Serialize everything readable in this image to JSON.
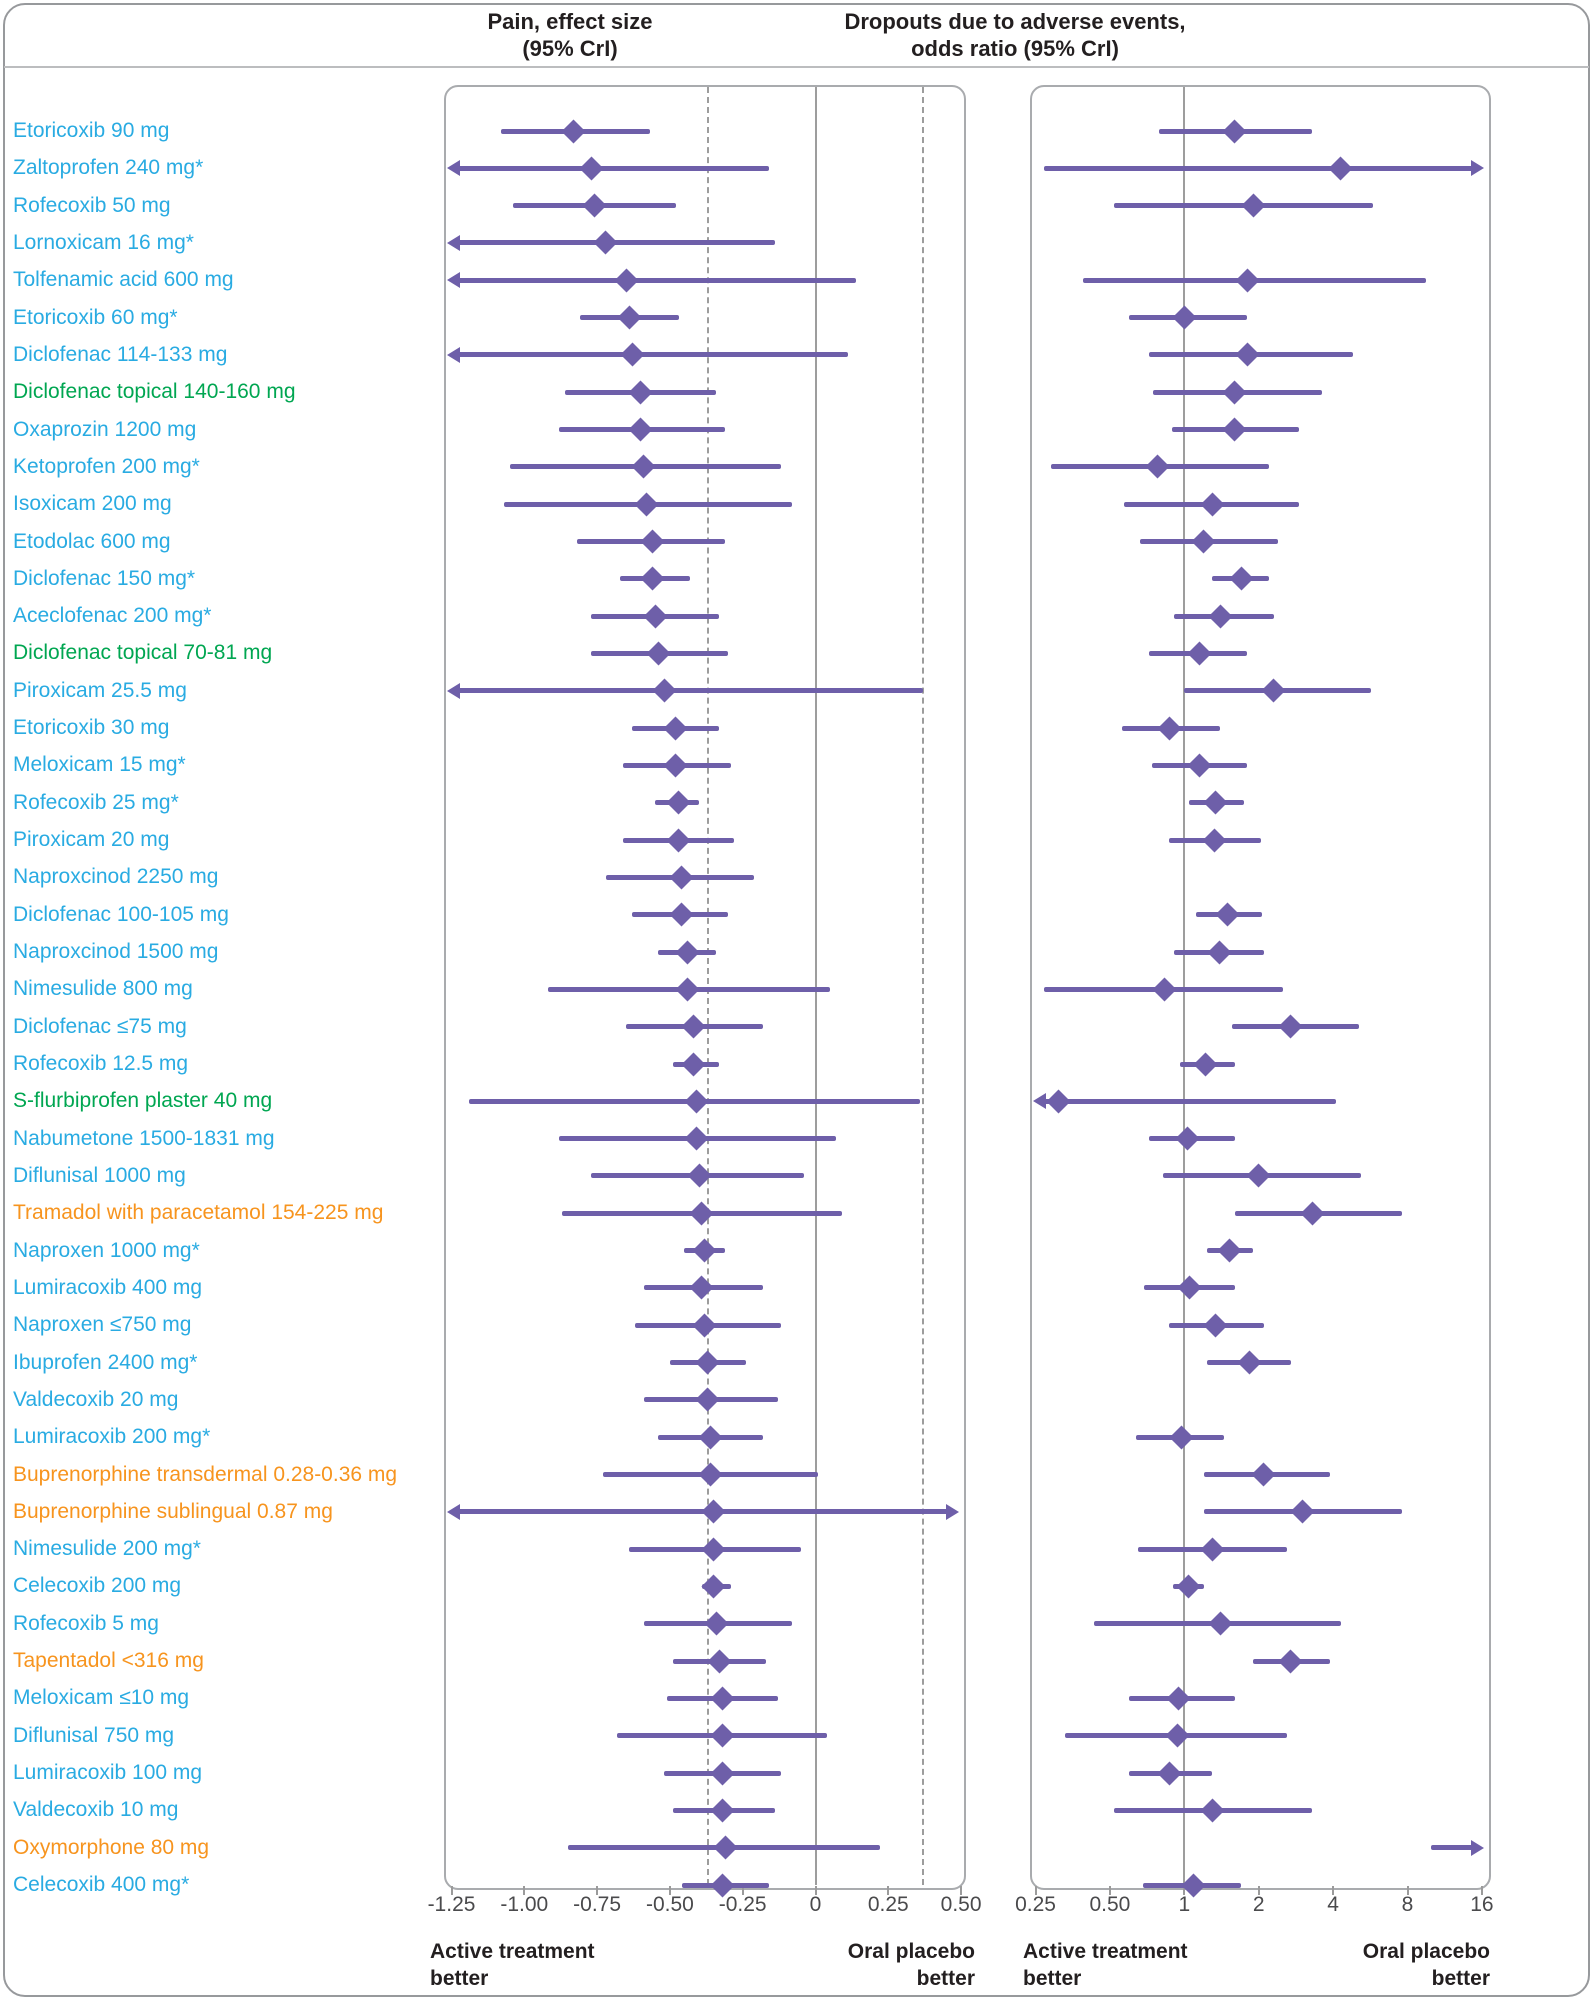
{
  "titles": {
    "pain": "Pain, effect size\n(95% CrI)",
    "dropouts": "Dropouts due to adverse events,\nodds ratio (95% CrI)"
  },
  "footers": {
    "active": "Active treatment\nbetter",
    "placebo": "Oral placebo\nbetter"
  },
  "colors": {
    "blue": "#29abe2",
    "green": "#00a651",
    "orange": "#f7941e",
    "marker_purple": "#6e5fa9",
    "grid_gray": "#9d9d9d",
    "text_dark": "#231f20"
  },
  "chart_data": {
    "type": "forest",
    "panels": [
      {
        "id": "pain",
        "title": "Pain, effect size (95% CrI)",
        "scale": "linear",
        "ticks": [
          -1.25,
          -1.0,
          -0.75,
          -0.5,
          -0.25,
          0,
          0.25,
          0.5
        ],
        "tick_labels": [
          "-1.25",
          "-1.00",
          "-0.75",
          "-0.50",
          "-0.25",
          "0",
          "0.25",
          "0.50"
        ],
        "ref_solid": 0,
        "ref_dashed": [
          -0.37,
          0.37
        ],
        "xlim": [
          -1.27,
          0.51
        ],
        "footer_left": "Active treatment better",
        "footer_right": "Oral placebo better"
      },
      {
        "id": "dropouts",
        "title": "Dropouts due to adverse events, odds ratio (95% CrI)",
        "scale": "log2",
        "ticks": [
          0.25,
          0.5,
          1,
          2,
          4,
          8,
          16
        ],
        "tick_labels": [
          "0.25",
          "0.50",
          "1",
          "2",
          "4",
          "8",
          "16"
        ],
        "ref_solid": 1,
        "ref_dashed": [],
        "xlim": [
          0.24,
          16.8
        ],
        "footer_left": "Active treatment better",
        "footer_right": "Oral placebo better"
      }
    ],
    "rows": [
      {
        "label": "Etoricoxib 90 mg",
        "group": "blue",
        "pain": {
          "est": -0.83,
          "lo": -1.08,
          "hi": -0.57
        },
        "dropouts": {
          "est": 1.6,
          "lo": 0.79,
          "hi": 3.3
        }
      },
      {
        "label": "Zaltoprofen 240 mg*",
        "group": "blue",
        "pain": {
          "est": -0.77,
          "lo": null,
          "hi": -0.16,
          "arrow_lo": true
        },
        "dropouts": {
          "est": 4.3,
          "lo": 0.27,
          "hi": null,
          "arrow_hi": true
        }
      },
      {
        "label": "Rofecoxib 50 mg",
        "group": "blue",
        "pain": {
          "est": -0.76,
          "lo": -1.04,
          "hi": -0.48
        },
        "dropouts": {
          "est": 1.9,
          "lo": 0.52,
          "hi": 5.8
        }
      },
      {
        "label": "Lornoxicam 16 mg*",
        "group": "blue",
        "pain": {
          "est": -0.72,
          "lo": null,
          "hi": -0.14,
          "arrow_lo": true
        },
        "dropouts": null
      },
      {
        "label": "Tolfenamic acid 600 mg",
        "group": "blue",
        "pain": {
          "est": -0.65,
          "lo": null,
          "hi": 0.14,
          "arrow_lo": true
        },
        "dropouts": {
          "est": 1.8,
          "lo": 0.39,
          "hi": 9.5
        }
      },
      {
        "label": "Etoricoxib 60 mg*",
        "group": "blue",
        "pain": {
          "est": -0.64,
          "lo": -0.81,
          "hi": -0.47
        },
        "dropouts": {
          "est": 1.0,
          "lo": 0.6,
          "hi": 1.8
        }
      },
      {
        "label": "Diclofenac 114-133 mg",
        "group": "blue",
        "pain": {
          "est": -0.63,
          "lo": null,
          "hi": 0.11,
          "arrow_lo": true
        },
        "dropouts": {
          "est": 1.8,
          "lo": 0.72,
          "hi": 4.8
        }
      },
      {
        "label": "Diclofenac topical 140-160 mg",
        "group": "green",
        "pain": {
          "est": -0.6,
          "lo": -0.86,
          "hi": -0.34
        },
        "dropouts": {
          "est": 1.6,
          "lo": 0.75,
          "hi": 3.6
        }
      },
      {
        "label": "Oxaprozin 1200 mg",
        "group": "blue",
        "pain": {
          "est": -0.6,
          "lo": -0.88,
          "hi": -0.31
        },
        "dropouts": {
          "est": 1.6,
          "lo": 0.89,
          "hi": 2.9
        }
      },
      {
        "label": "Ketoprofen 200 mg*",
        "group": "blue",
        "pain": {
          "est": -0.59,
          "lo": -1.05,
          "hi": -0.12
        },
        "dropouts": {
          "est": 0.78,
          "lo": 0.29,
          "hi": 2.2
        }
      },
      {
        "label": "Isoxicam 200 mg",
        "group": "blue",
        "pain": {
          "est": -0.58,
          "lo": -1.07,
          "hi": -0.08
        },
        "dropouts": {
          "est": 1.3,
          "lo": 0.57,
          "hi": 2.9
        }
      },
      {
        "label": "Etodolac 600 mg",
        "group": "blue",
        "pain": {
          "est": -0.56,
          "lo": -0.82,
          "hi": -0.31
        },
        "dropouts": {
          "est": 1.2,
          "lo": 0.66,
          "hi": 2.4
        }
      },
      {
        "label": "Diclofenac 150 mg*",
        "group": "blue",
        "pain": {
          "est": -0.56,
          "lo": -0.67,
          "hi": -0.43
        },
        "dropouts": {
          "est": 1.7,
          "lo": 1.3,
          "hi": 2.2
        }
      },
      {
        "label": "Aceclofenac 200 mg*",
        "group": "blue",
        "pain": {
          "est": -0.55,
          "lo": -0.77,
          "hi": -0.33
        },
        "dropouts": {
          "est": 1.4,
          "lo": 0.91,
          "hi": 2.3
        }
      },
      {
        "label": "Diclofenac topical 70-81 mg",
        "group": "green",
        "pain": {
          "est": -0.54,
          "lo": -0.77,
          "hi": -0.3
        },
        "dropouts": {
          "est": 1.15,
          "lo": 0.72,
          "hi": 1.8
        }
      },
      {
        "label": "Piroxicam 25.5 mg",
        "group": "blue",
        "pain": {
          "est": -0.52,
          "lo": null,
          "hi": 0.37,
          "arrow_lo": true
        },
        "dropouts": {
          "est": 2.3,
          "lo": 1.0,
          "hi": 5.7
        }
      },
      {
        "label": "Etoricoxib 30 mg",
        "group": "blue",
        "pain": {
          "est": -0.48,
          "lo": -0.63,
          "hi": -0.33
        },
        "dropouts": {
          "est": 0.87,
          "lo": 0.56,
          "hi": 1.4
        }
      },
      {
        "label": "Meloxicam 15 mg*",
        "group": "blue",
        "pain": {
          "est": -0.48,
          "lo": -0.66,
          "hi": -0.29
        },
        "dropouts": {
          "est": 1.15,
          "lo": 0.74,
          "hi": 1.8
        }
      },
      {
        "label": "Rofecoxib 25 mg*",
        "group": "blue",
        "pain": {
          "est": -0.47,
          "lo": -0.55,
          "hi": -0.4
        },
        "dropouts": {
          "est": 1.34,
          "lo": 1.04,
          "hi": 1.74
        }
      },
      {
        "label": "Piroxicam 20 mg",
        "group": "blue",
        "pain": {
          "est": -0.47,
          "lo": -0.66,
          "hi": -0.28
        },
        "dropouts": {
          "est": 1.33,
          "lo": 0.87,
          "hi": 2.05
        }
      },
      {
        "label": "Naproxcinod 2250 mg",
        "group": "blue",
        "pain": {
          "est": -0.46,
          "lo": -0.72,
          "hi": -0.21
        },
        "dropouts": null
      },
      {
        "label": "Diclofenac 100-105 mg",
        "group": "blue",
        "pain": {
          "est": -0.46,
          "lo": -0.63,
          "hi": -0.3
        },
        "dropouts": {
          "est": 1.5,
          "lo": 1.11,
          "hi": 2.06
        }
      },
      {
        "label": "Naproxcinod 1500 mg",
        "group": "blue",
        "pain": {
          "est": -0.44,
          "lo": -0.54,
          "hi": -0.34
        },
        "dropouts": {
          "est": 1.39,
          "lo": 0.91,
          "hi": 2.1
        }
      },
      {
        "label": "Nimesulide 800 mg",
        "group": "blue",
        "pain": {
          "est": -0.44,
          "lo": -0.92,
          "hi": 0.05
        },
        "dropouts": {
          "est": 0.83,
          "lo": 0.27,
          "hi": 2.5
        }
      },
      {
        "label": "Diclofenac ≤75 mg",
        "group": "blue",
        "pain": {
          "est": -0.42,
          "lo": -0.65,
          "hi": -0.18
        },
        "dropouts": {
          "est": 2.7,
          "lo": 1.56,
          "hi": 5.1
        }
      },
      {
        "label": "Rofecoxib 12.5 mg",
        "group": "blue",
        "pain": {
          "est": -0.42,
          "lo": -0.49,
          "hi": -0.33
        },
        "dropouts": {
          "est": 1.22,
          "lo": 0.96,
          "hi": 1.6
        }
      },
      {
        "label": "S-flurbiprofen plaster 40 mg",
        "group": "green",
        "pain": {
          "est": -0.41,
          "lo": -1.19,
          "hi": 0.36
        },
        "dropouts": {
          "est": 0.31,
          "lo": null,
          "hi": 4.1,
          "arrow_lo": true
        }
      },
      {
        "label": "Nabumetone 1500-1831 mg",
        "group": "blue",
        "pain": {
          "est": -0.41,
          "lo": -0.88,
          "hi": 0.07
        },
        "dropouts": {
          "est": 1.03,
          "lo": 0.72,
          "hi": 1.6
        }
      },
      {
        "label": "Diflunisal 1000 mg",
        "group": "blue",
        "pain": {
          "est": -0.4,
          "lo": -0.77,
          "hi": -0.04
        },
        "dropouts": {
          "est": 2.0,
          "lo": 0.82,
          "hi": 5.2
        }
      },
      {
        "label": "Tramadol with paracetamol 154-225 mg",
        "group": "orange",
        "pain": {
          "est": -0.39,
          "lo": -0.87,
          "hi": 0.09
        },
        "dropouts": {
          "est": 3.3,
          "lo": 1.6,
          "hi": 7.6
        }
      },
      {
        "label": "Naproxen 1000 mg*",
        "group": "blue",
        "pain": {
          "est": -0.38,
          "lo": -0.45,
          "hi": -0.31
        },
        "dropouts": {
          "est": 1.53,
          "lo": 1.24,
          "hi": 1.89
        }
      },
      {
        "label": "Lumiracoxib 400 mg",
        "group": "blue",
        "pain": {
          "est": -0.39,
          "lo": -0.59,
          "hi": -0.18
        },
        "dropouts": {
          "est": 1.05,
          "lo": 0.69,
          "hi": 1.6
        }
      },
      {
        "label": "Naproxen ≤750 mg",
        "group": "blue",
        "pain": {
          "est": -0.38,
          "lo": -0.62,
          "hi": -0.12
        },
        "dropouts": {
          "est": 1.34,
          "lo": 0.87,
          "hi": 2.1
        }
      },
      {
        "label": "Ibuprofen 2400 mg*",
        "group": "blue",
        "pain": {
          "est": -0.37,
          "lo": -0.5,
          "hi": -0.24
        },
        "dropouts": {
          "est": 1.84,
          "lo": 1.24,
          "hi": 2.7
        }
      },
      {
        "label": "Valdecoxib 20 mg",
        "group": "blue",
        "pain": {
          "est": -0.37,
          "lo": -0.59,
          "hi": -0.13
        },
        "dropouts": null
      },
      {
        "label": "Lumiracoxib 200 mg*",
        "group": "blue",
        "pain": {
          "est": -0.36,
          "lo": -0.54,
          "hi": -0.18
        },
        "dropouts": {
          "est": 0.97,
          "lo": 0.64,
          "hi": 1.45
        }
      },
      {
        "label": "Buprenorphine transdermal 0.28-0.36 mg",
        "group": "orange",
        "pain": {
          "est": -0.36,
          "lo": -0.73,
          "hi": 0.01
        },
        "dropouts": {
          "est": 2.1,
          "lo": 1.2,
          "hi": 3.9
        }
      },
      {
        "label": "Buprenorphine sublingual 0.87 mg",
        "group": "orange",
        "pain": {
          "est": -0.35,
          "lo": null,
          "hi": null,
          "arrow_lo": true,
          "arrow_hi": true
        },
        "dropouts": {
          "est": 3.0,
          "lo": 1.2,
          "hi": 7.6
        }
      },
      {
        "label": "Nimesulide 200 mg*",
        "group": "blue",
        "pain": {
          "est": -0.35,
          "lo": -0.64,
          "hi": -0.05
        },
        "dropouts": {
          "est": 1.3,
          "lo": 0.65,
          "hi": 2.6
        }
      },
      {
        "label": "Celecoxib 200 mg",
        "group": "blue",
        "pain": {
          "est": -0.35,
          "lo": -0.39,
          "hi": -0.29
        },
        "dropouts": {
          "est": 1.04,
          "lo": 0.9,
          "hi": 1.2
        }
      },
      {
        "label": "Rofecoxib 5 mg",
        "group": "blue",
        "pain": {
          "est": -0.34,
          "lo": -0.59,
          "hi": -0.08
        },
        "dropouts": {
          "est": 1.4,
          "lo": 0.43,
          "hi": 4.3
        }
      },
      {
        "label": "Tapentadol <316 mg",
        "group": "orange",
        "pain": {
          "est": -0.33,
          "lo": -0.49,
          "hi": -0.17
        },
        "dropouts": {
          "est": 2.7,
          "lo": 1.9,
          "hi": 3.9
        }
      },
      {
        "label": "Meloxicam ≤10 mg",
        "group": "blue",
        "pain": {
          "est": -0.32,
          "lo": -0.51,
          "hi": -0.13
        },
        "dropouts": {
          "est": 0.95,
          "lo": 0.6,
          "hi": 1.6
        }
      },
      {
        "label": "Diflunisal 750 mg",
        "group": "blue",
        "pain": {
          "est": -0.32,
          "lo": -0.68,
          "hi": 0.04
        },
        "dropouts": {
          "est": 0.94,
          "lo": 0.33,
          "hi": 2.6
        }
      },
      {
        "label": "Lumiracoxib 100 mg",
        "group": "blue",
        "pain": {
          "est": -0.32,
          "lo": -0.52,
          "hi": -0.12
        },
        "dropouts": {
          "est": 0.87,
          "lo": 0.6,
          "hi": 1.3
        }
      },
      {
        "label": "Valdecoxib 10 mg",
        "group": "blue",
        "pain": {
          "est": -0.32,
          "lo": -0.49,
          "hi": -0.14
        },
        "dropouts": {
          "est": 1.3,
          "lo": 0.52,
          "hi": 3.3
        }
      },
      {
        "label": "Oxymorphone 80 mg",
        "group": "orange",
        "pain": {
          "est": -0.31,
          "lo": -0.85,
          "hi": 0.22
        },
        "dropouts": {
          "est": null,
          "lo": 10,
          "hi": null,
          "arrow_hi": true
        }
      },
      {
        "label": "Celecoxib 400 mg*",
        "group": "blue",
        "pain": {
          "est": -0.32,
          "lo": -0.46,
          "hi": -0.16
        },
        "dropouts": {
          "est": 1.09,
          "lo": 0.68,
          "hi": 1.7
        }
      }
    ]
  }
}
